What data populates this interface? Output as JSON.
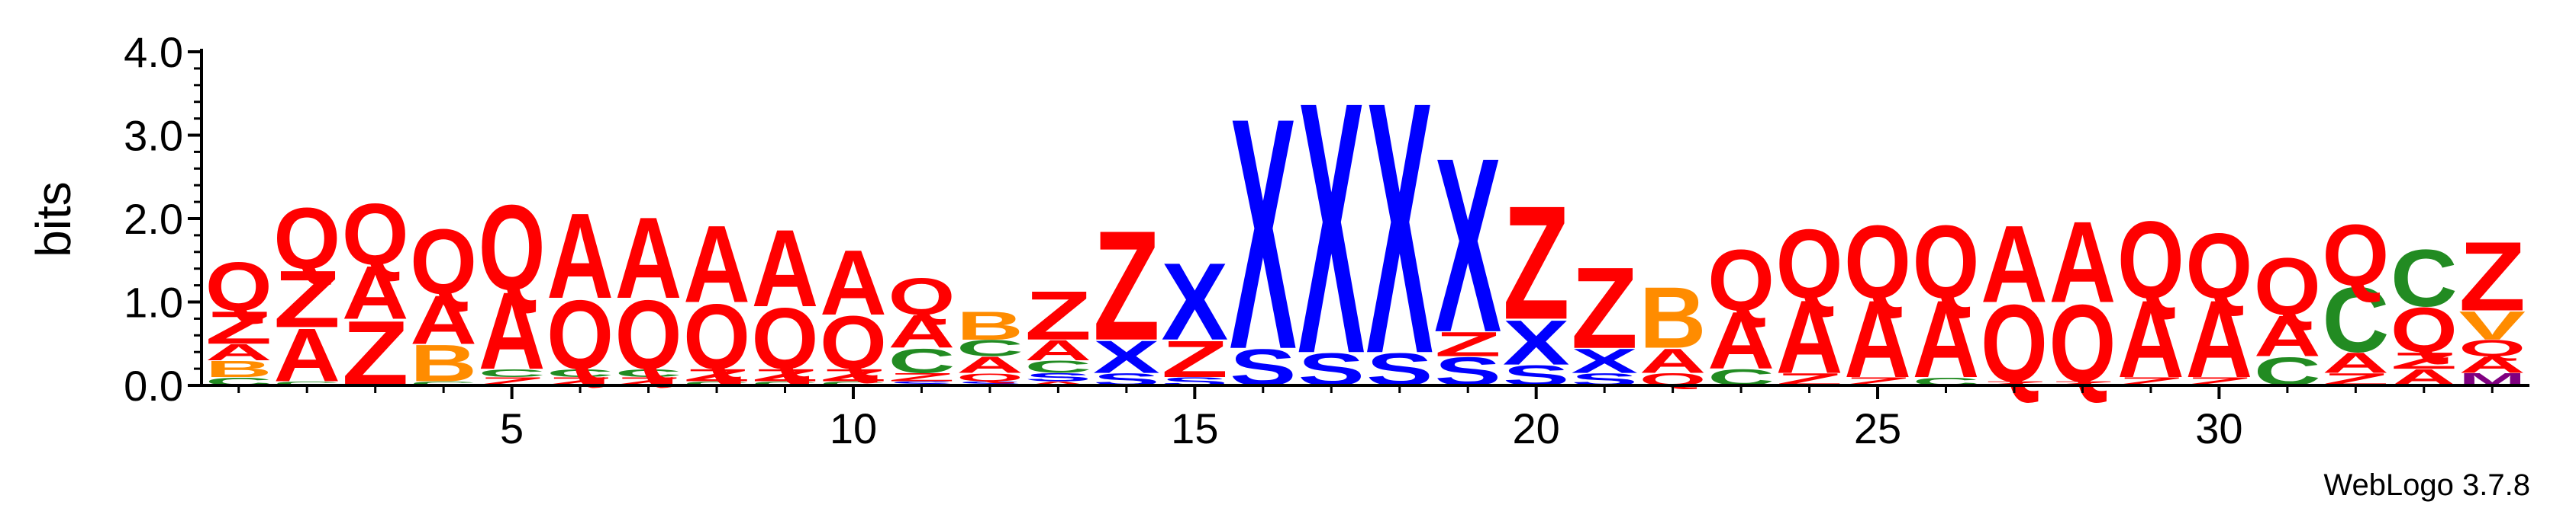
{
  "chart_data": {
    "type": "sequence-logo",
    "ylabel": "bits",
    "ylim": [
      0,
      4
    ],
    "y_ticks": [
      "0.0",
      "1.0",
      "2.0",
      "3.0",
      "4.0"
    ],
    "x_tick_values": [
      5,
      10,
      15,
      20,
      25,
      30
    ],
    "positions": 34,
    "footer": "WebLogo 3.7.8",
    "colors": {
      "Q": "#ff0000",
      "Z": "#ff0000",
      "A": "#ff0000",
      "V": "#ff8c00",
      "B": "#ff8c00",
      "C": "#228b22",
      "X": "#0000ff",
      "S": "#0000ff",
      "M": "#800080"
    },
    "columns": [
      [
        [
          "C",
          0.1
        ],
        [
          "B",
          0.2
        ],
        [
          "A",
          0.2
        ],
        [
          "Z",
          0.4
        ],
        [
          "Q",
          0.6
        ]
      ],
      [
        [
          "C",
          0.05
        ],
        [
          "A",
          0.65
        ],
        [
          "Z",
          0.7
        ],
        [
          "Q",
          0.75
        ]
      ],
      [
        [
          "Z",
          0.8
        ],
        [
          "A",
          0.65
        ],
        [
          "Q",
          0.75
        ]
      ],
      [
        [
          "C",
          0.05
        ],
        [
          "B",
          0.45
        ],
        [
          "A",
          0.6
        ],
        [
          "Q",
          0.8
        ]
      ],
      [
        [
          "Z",
          0.1
        ],
        [
          "C",
          0.1
        ],
        [
          "A",
          0.95
        ],
        [
          "Q",
          1.05
        ]
      ],
      [
        [
          "Z",
          0.1
        ],
        [
          "C",
          0.1
        ],
        [
          "Q",
          0.85
        ],
        [
          "A",
          1.05
        ]
      ],
      [
        [
          "Z",
          0.1
        ],
        [
          "C",
          0.1
        ],
        [
          "Q",
          0.85
        ],
        [
          "A",
          1.0
        ]
      ],
      [
        [
          "C",
          0.05
        ],
        [
          "Z",
          0.15
        ],
        [
          "Q",
          0.8
        ],
        [
          "A",
          0.95
        ]
      ],
      [
        [
          "C",
          0.05
        ],
        [
          "Z",
          0.15
        ],
        [
          "Q",
          0.75
        ],
        [
          "A",
          0.95
        ]
      ],
      [
        [
          "C",
          0.05
        ],
        [
          "Z",
          0.15
        ],
        [
          "Q",
          0.65
        ],
        [
          "A",
          0.8
        ]
      ],
      [
        [
          "S",
          0.05
        ],
        [
          "Z",
          0.1
        ],
        [
          "C",
          0.3
        ],
        [
          "A",
          0.4
        ],
        [
          "Q",
          0.45
        ]
      ],
      [
        [
          "S",
          0.05
        ],
        [
          "Q",
          0.1
        ],
        [
          "A",
          0.2
        ],
        [
          "C",
          0.2
        ],
        [
          "B",
          0.35
        ]
      ],
      [
        [
          "A",
          0.05
        ],
        [
          "S",
          0.1
        ],
        [
          "C",
          0.15
        ],
        [
          "A",
          0.25
        ],
        [
          "Z",
          0.6
        ]
      ],
      [
        [
          "S",
          0.15
        ],
        [
          "X",
          0.4
        ],
        [
          "Z",
          1.35
        ]
      ],
      [
        [
          "S",
          0.1
        ],
        [
          "Z",
          0.45
        ],
        [
          "X",
          0.95
        ]
      ],
      [
        [
          "S",
          0.45
        ],
        [
          "X",
          2.85
        ]
      ],
      [
        [
          "S",
          0.4
        ],
        [
          "X",
          3.1
        ]
      ],
      [
        [
          "S",
          0.4
        ],
        [
          "X",
          3.1
        ]
      ],
      [
        [
          "S",
          0.35
        ],
        [
          "Z",
          0.3
        ],
        [
          "X",
          2.15
        ]
      ],
      [
        [
          "S",
          0.25
        ],
        [
          "X",
          0.55
        ],
        [
          "Z",
          1.4
        ]
      ],
      [
        [
          "S",
          0.15
        ],
        [
          "X",
          0.3
        ],
        [
          "Z",
          1.0
        ]
      ],
      [
        [
          "Q",
          0.15
        ],
        [
          "A",
          0.3
        ],
        [
          "B",
          0.75
        ]
      ],
      [
        [
          "C",
          0.2
        ],
        [
          "A",
          0.7
        ],
        [
          "Q",
          0.75
        ]
      ],
      [
        [
          "Z",
          0.15
        ],
        [
          "A",
          0.9
        ],
        [
          "Q",
          0.85
        ]
      ],
      [
        [
          "Z",
          0.1
        ],
        [
          "A",
          0.95
        ],
        [
          "Q",
          0.9
        ]
      ],
      [
        [
          "C",
          0.1
        ],
        [
          "A",
          0.95
        ],
        [
          "Q",
          0.9
        ]
      ],
      [
        [
          "Z",
          0.05
        ],
        [
          "Q",
          0.95
        ],
        [
          "A",
          0.95
        ]
      ],
      [
        [
          "Z",
          0.05
        ],
        [
          "Q",
          0.95
        ],
        [
          "A",
          1.0
        ]
      ],
      [
        [
          "Z",
          0.1
        ],
        [
          "A",
          0.95
        ],
        [
          "Q",
          0.95
        ]
      ],
      [
        [
          "Z",
          0.1
        ],
        [
          "A",
          0.95
        ],
        [
          "Q",
          0.8
        ]
      ],
      [
        [
          "C",
          0.35
        ],
        [
          "A",
          0.5
        ],
        [
          "Q",
          0.7
        ]
      ],
      [
        [
          "Z",
          0.15
        ],
        [
          "A",
          0.25
        ],
        [
          "C",
          0.8
        ],
        [
          "Q",
          0.75
        ]
      ],
      [
        [
          "A",
          0.2
        ],
        [
          "Z",
          0.2
        ],
        [
          "Q",
          0.55
        ],
        [
          "C",
          0.7
        ]
      ],
      [
        [
          "M",
          0.15
        ],
        [
          "A",
          0.2
        ],
        [
          "Q",
          0.2
        ],
        [
          "V",
          0.35
        ],
        [
          "Z",
          0.85
        ]
      ]
    ]
  }
}
